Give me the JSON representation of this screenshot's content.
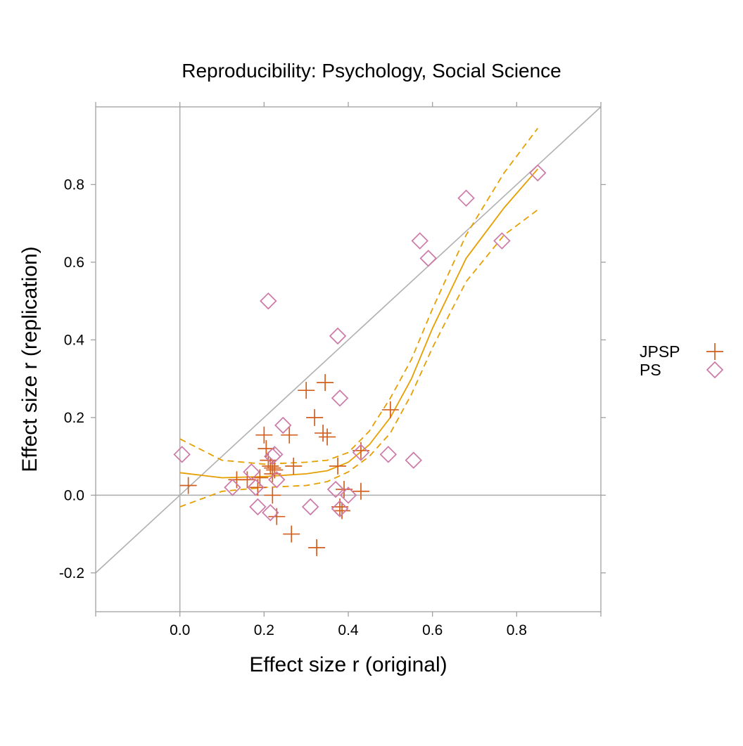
{
  "chart_data": {
    "type": "scatter",
    "title": "Reproducibility: Psychology, Social Science",
    "xlabel": "Effect size r (original)",
    "ylabel": "Effect size r (replication)",
    "xlim": [
      -0.2,
      1.0
    ],
    "ylim": [
      -0.3,
      1.0
    ],
    "x_ticks": [
      0.0,
      0.2,
      0.4,
      0.6,
      0.8
    ],
    "x_tick_labels": [
      "0.0",
      "0.2",
      "0.4",
      "0.6",
      "0.8"
    ],
    "y_ticks": [
      -0.2,
      0.0,
      0.2,
      0.4,
      0.6,
      0.8
    ],
    "y_tick_labels": [
      "-0.2",
      "0.0",
      "0.2",
      "0.4",
      "0.6",
      "0.8"
    ],
    "grid": false,
    "reference_lines": [
      "x = 0",
      "y = 0",
      "y = x"
    ],
    "legend_placement": "right",
    "colors": {
      "JPSP": "#d35f1f",
      "PS": "#cc79a7",
      "fit": "#e69f00",
      "reference": "#b0b0b0",
      "frame": "#a0a0a0"
    },
    "series": [
      {
        "name": "JPSP",
        "marker": "plus",
        "x": [
          0.02,
          0.135,
          0.16,
          0.185,
          0.2,
          0.205,
          0.21,
          0.215,
          0.22,
          0.225,
          0.23,
          0.22,
          0.26,
          0.27,
          0.265,
          0.3,
          0.32,
          0.325,
          0.34,
          0.345,
          0.35,
          0.375,
          0.38,
          0.385,
          0.39,
          0.43,
          0.43,
          0.5,
          0.19,
          0.22
        ],
        "y": [
          0.025,
          0.04,
          0.04,
          0.02,
          0.155,
          0.12,
          0.09,
          0.075,
          0.07,
          0.065,
          -0.055,
          0.0,
          0.155,
          0.075,
          -0.1,
          0.27,
          0.2,
          -0.135,
          0.16,
          0.29,
          0.15,
          0.075,
          -0.03,
          -0.04,
          0.015,
          0.115,
          0.01,
          0.22,
          0.045,
          0.055
        ]
      },
      {
        "name": "PS",
        "marker": "diamond",
        "x": [
          0.005,
          0.125,
          0.17,
          0.18,
          0.185,
          0.21,
          0.215,
          0.22,
          0.225,
          0.23,
          0.245,
          0.31,
          0.37,
          0.375,
          0.38,
          0.38,
          0.4,
          0.43,
          0.495,
          0.555,
          0.57,
          0.59,
          0.68,
          0.765,
          0.85
        ],
        "y": [
          0.105,
          0.02,
          0.06,
          0.02,
          -0.03,
          0.5,
          -0.045,
          0.1,
          0.105,
          0.04,
          0.18,
          -0.03,
          0.015,
          0.41,
          0.25,
          -0.035,
          0.0,
          0.11,
          0.105,
          0.09,
          0.655,
          0.61,
          0.765,
          0.655,
          0.83
        ]
      }
    ],
    "fit": {
      "x": [
        0.0,
        0.1,
        0.2,
        0.3,
        0.35,
        0.4,
        0.45,
        0.5,
        0.55,
        0.6,
        0.68,
        0.77,
        0.85
      ],
      "y": [
        0.058,
        0.045,
        0.048,
        0.055,
        0.063,
        0.085,
        0.13,
        0.2,
        0.3,
        0.43,
        0.61,
        0.74,
        0.84
      ],
      "lower": [
        -0.03,
        0.01,
        0.02,
        0.025,
        0.035,
        0.06,
        0.1,
        0.16,
        0.26,
        0.38,
        0.55,
        0.67,
        0.735
      ],
      "upper": [
        0.145,
        0.09,
        0.08,
        0.085,
        0.09,
        0.11,
        0.165,
        0.25,
        0.35,
        0.48,
        0.67,
        0.83,
        0.945
      ]
    }
  }
}
